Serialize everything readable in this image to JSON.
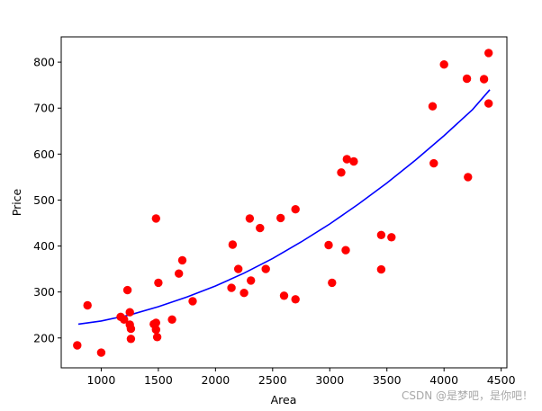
{
  "chart_data": {
    "type": "scatter",
    "title": "",
    "xlabel": "Area",
    "ylabel": "Price",
    "xlim": [
      650,
      4550
    ],
    "ylim": [
      135,
      855
    ],
    "xticks": [
      1000,
      1500,
      2000,
      2500,
      3000,
      3500,
      4000,
      4500
    ],
    "yticks": [
      200,
      300,
      400,
      500,
      600,
      700,
      800
    ],
    "grid": false,
    "colors": {
      "points": "#ff0000",
      "curve": "#0000ff"
    },
    "series": [
      {
        "kind": "points",
        "x": [
          790,
          880,
          1000,
          1170,
          1200,
          1230,
          1250,
          1250,
          1260,
          1260,
          1460,
          1480,
          1480,
          1480,
          1490,
          1500,
          1620,
          1680,
          1710,
          1800,
          2140,
          2150,
          2200,
          2250,
          2300,
          2310,
          2390,
          2440,
          2570,
          2600,
          2700,
          2700,
          2990,
          3020,
          3100,
          3140,
          3150,
          3210,
          3450,
          3450,
          3540,
          3900,
          3910,
          4000,
          4200,
          4210,
          4350,
          4390,
          4390
        ],
        "y": [
          184,
          271,
          168,
          246,
          240,
          304,
          229,
          256,
          220,
          198,
          230,
          233,
          460,
          218,
          202,
          320,
          240,
          340,
          369,
          280,
          309,
          403,
          350,
          298,
          460,
          325,
          439,
          350,
          461,
          292,
          284,
          480,
          402,
          320,
          560,
          391,
          589,
          584,
          424,
          349,
          419,
          704,
          580,
          795,
          764,
          550,
          763,
          820,
          710
        ]
      },
      {
        "kind": "fitted-curve",
        "x": [
          800,
          1000,
          1250,
          1500,
          1750,
          2000,
          2250,
          2500,
          2750,
          3000,
          3250,
          3500,
          3750,
          4000,
          4250,
          4400
        ],
        "y": [
          230,
          237,
          250,
          268,
          289,
          313,
          341,
          373,
          409,
          448,
          491,
          537,
          587,
          640,
          697,
          740
        ]
      }
    ]
  },
  "watermark": "CSDN @是梦吧，是你吧！"
}
